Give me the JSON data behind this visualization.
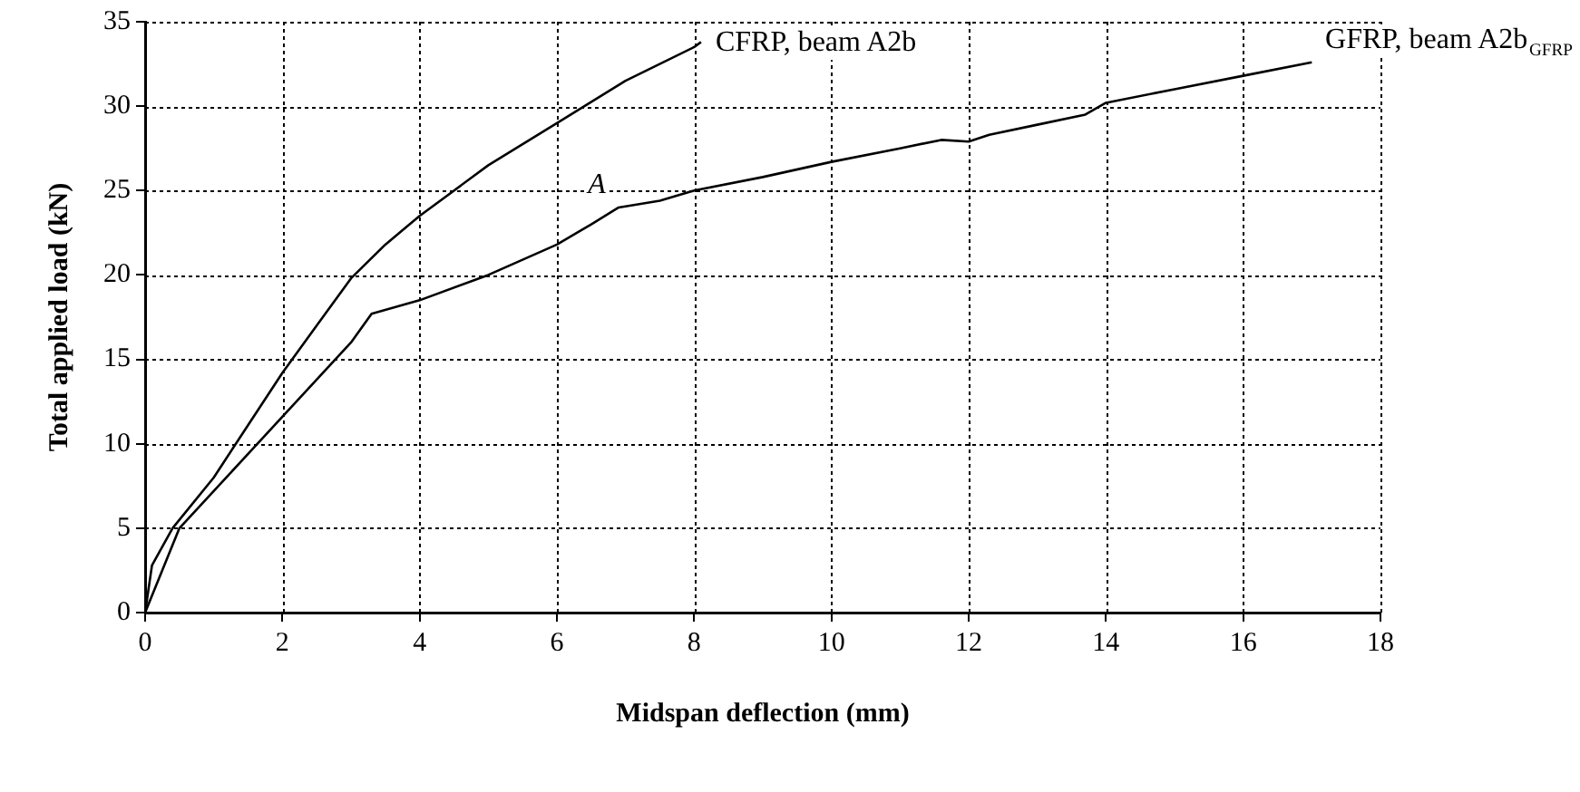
{
  "chart_data": {
    "type": "line",
    "xlabel": "Midspan deflection (mm)",
    "ylabel": "Total applied load (kN)",
    "xlim": [
      0,
      18
    ],
    "xticks": [
      0,
      2,
      4,
      6,
      8,
      10,
      12,
      14,
      16,
      18
    ],
    "ylim": [
      0,
      35
    ],
    "yticks": [
      0,
      5,
      10,
      15,
      20,
      25,
      30,
      35
    ],
    "grid": true,
    "legend": false,
    "marker": "none",
    "line_style": "solid",
    "annotations": [
      {
        "text": "A",
        "x": 6.9,
        "y": 24
      }
    ],
    "series": [
      {
        "name": "CFRP, beam A2b",
        "color": "#000000",
        "x": [
          0,
          0.1,
          0.4,
          1,
          2,
          2.5,
          3,
          3.5,
          4,
          5,
          6,
          7,
          8,
          8.1
        ],
        "values": [
          0,
          2.8,
          5,
          8,
          14.2,
          17,
          19.8,
          21.8,
          23.5,
          26.5,
          29,
          31.5,
          33.5,
          33.8
        ]
      },
      {
        "name": "GFRP, beam A2b$_{GFRP}$",
        "color": "#000000",
        "x": [
          0,
          0.5,
          1,
          2,
          3,
          3.3,
          4,
          5,
          6,
          6.5,
          6.9,
          7.5,
          8,
          9,
          10,
          11,
          11.6,
          12,
          12.3,
          13,
          13.7,
          14,
          15,
          16,
          17
        ],
        "values": [
          0,
          5,
          7.2,
          11.6,
          16,
          17.7,
          18.5,
          20,
          21.8,
          23,
          24,
          24.4,
          25,
          25.8,
          26.7,
          27.5,
          28,
          27.9,
          28.3,
          28.9,
          29.5,
          30.2,
          31,
          31.8,
          32.6
        ]
      }
    ]
  }
}
